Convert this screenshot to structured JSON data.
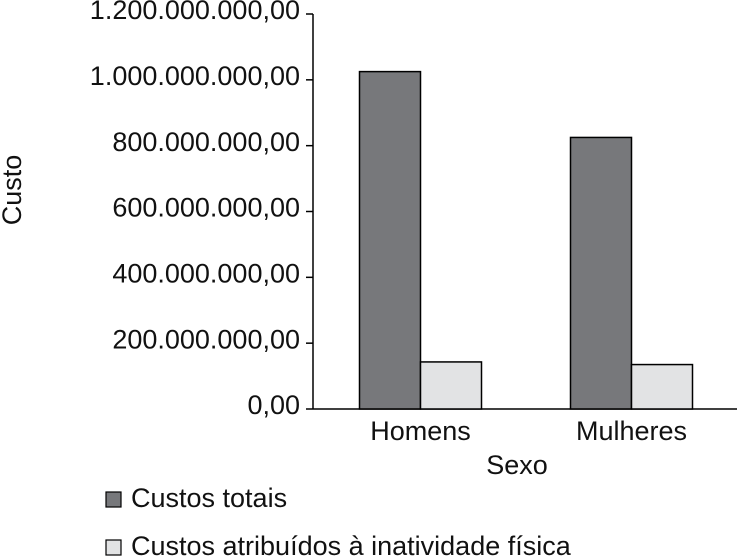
{
  "chart_data": {
    "type": "bar",
    "x_label": "Sexo",
    "y_label": "Custo",
    "categories": [
      "Homens",
      "Mulheres"
    ],
    "series": [
      {
        "name": "Custos totais",
        "color": "#77787b",
        "values": [
          1025000000,
          825000000
        ]
      },
      {
        "name": "Custos atribuídos à inatividade física",
        "color": "#e2e3e4",
        "values": [
          143000000,
          135000000
        ]
      }
    ],
    "ylim": [
      0,
      1200000000
    ],
    "yticks": [
      {
        "value": 0,
        "label": "0,00"
      },
      {
        "value": 200000000,
        "label": "200.000.000,00"
      },
      {
        "value": 400000000,
        "label": "400.000.000,00"
      },
      {
        "value": 600000000,
        "label": "600.000.000,00"
      },
      {
        "value": 800000000,
        "label": "800.000.000,00"
      },
      {
        "value": 1000000000,
        "label": "1.000.000.000,00"
      },
      {
        "value": 1200000000,
        "label": "1.200.000.000,00"
      }
    ],
    "grid": false,
    "legend": "bottom"
  }
}
